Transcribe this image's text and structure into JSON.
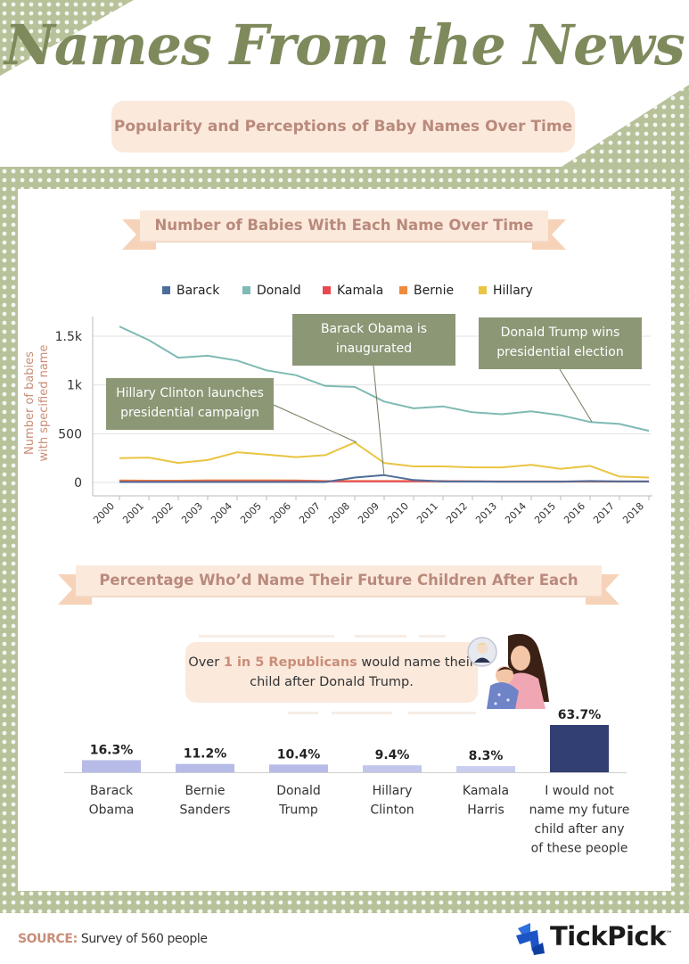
{
  "header": {
    "title": "Names From the News",
    "subtitle": "Popularity and Perceptions of Baby Names Over Time"
  },
  "colors": {
    "sage": "#7e8a5c",
    "peach": "#fbe9dc",
    "barack": "#4d6d9a",
    "donald": "#7fbab4",
    "kamala": "#e8484f",
    "bernie": "#ee8a3c",
    "hillary": "#e9c542",
    "bar_light": "#b6bbe8",
    "bar_dark": "#323f72"
  },
  "section1": {
    "title": "Number of Babies With Each Name Over Time"
  },
  "section2": {
    "title": "Percentage Who’d Name Their Future Children After Each"
  },
  "annotations": {
    "obama": [
      "Barack Obama is",
      "inaugurated"
    ],
    "trump": [
      "Donald Trump wins",
      "presidential election"
    ],
    "hillary": [
      "Hillary Clinton launches",
      "presidential campaign"
    ]
  },
  "callout": {
    "prefix": "Over ",
    "highlight": "1 in 5 Republicans",
    "suffix": " would name their child after Donald Trump."
  },
  "chart_data": [
    {
      "type": "line",
      "x": [
        "2000",
        "2001",
        "2002",
        "2003",
        "2004",
        "2005",
        "2006",
        "2007",
        "2008",
        "2009",
        "2010",
        "2011",
        "2012",
        "2013",
        "2014",
        "2015",
        "2016",
        "2017",
        "2018"
      ],
      "ylabel": "Number of babies with specified name",
      "yticks": [
        "0",
        "500",
        "1k",
        "1.5k"
      ],
      "ylim": [
        0,
        1650
      ],
      "legend": "top",
      "grid": true,
      "series": [
        {
          "name": "Barack",
          "color": "#4d6d9a",
          "values": [
            5,
            5,
            5,
            5,
            5,
            5,
            5,
            5,
            50,
            75,
            25,
            10,
            10,
            8,
            8,
            8,
            15,
            10,
            10
          ]
        },
        {
          "name": "Donald",
          "color": "#7fbab4",
          "values": [
            1600,
            1460,
            1280,
            1300,
            1250,
            1150,
            1100,
            990,
            980,
            830,
            760,
            780,
            720,
            700,
            730,
            690,
            620,
            600,
            530
          ]
        },
        {
          "name": "Kamala",
          "color": "#e8484f",
          "values": [
            10,
            10,
            10,
            12,
            12,
            12,
            14,
            12,
            12,
            12,
            12,
            12,
            12,
            10,
            10,
            10,
            10,
            10,
            10
          ]
        },
        {
          "name": "Bernie",
          "color": "#ee8a3c",
          "values": [
            20,
            18,
            18,
            22,
            22,
            22,
            20,
            15,
            15,
            15,
            15,
            15,
            10,
            8,
            8,
            8,
            10,
            10,
            10
          ]
        },
        {
          "name": "Hillary",
          "color": "#e9c542",
          "values": [
            250,
            255,
            200,
            230,
            310,
            285,
            260,
            280,
            410,
            200,
            165,
            165,
            155,
            155,
            180,
            140,
            170,
            60,
            50
          ]
        }
      ]
    },
    {
      "type": "bar",
      "categories": [
        [
          "Barack",
          "Obama"
        ],
        [
          "Bernie",
          "Sanders"
        ],
        [
          "Donald",
          "Trump"
        ],
        [
          "Hillary",
          "Clinton"
        ],
        [
          "Kamala",
          "Harris"
        ],
        [
          "I would not",
          "name my future",
          "child after any",
          "of these people"
        ]
      ],
      "values": [
        16.3,
        11.2,
        10.4,
        9.4,
        8.3,
        63.7
      ],
      "labels": [
        "16.3%",
        "11.2%",
        "10.4%",
        "9.4%",
        "8.3%",
        "63.7%"
      ],
      "colors": [
        "#b6bbe8",
        "#b6bbe8",
        "#b6bbe8",
        "#c1c6ea",
        "#c9cdee",
        "#323f72"
      ]
    }
  ],
  "footer": {
    "source_label": "SOURCE:",
    "source_text": " Survey of 560 people",
    "brand": "TickPick",
    "brand_mark": "™"
  }
}
